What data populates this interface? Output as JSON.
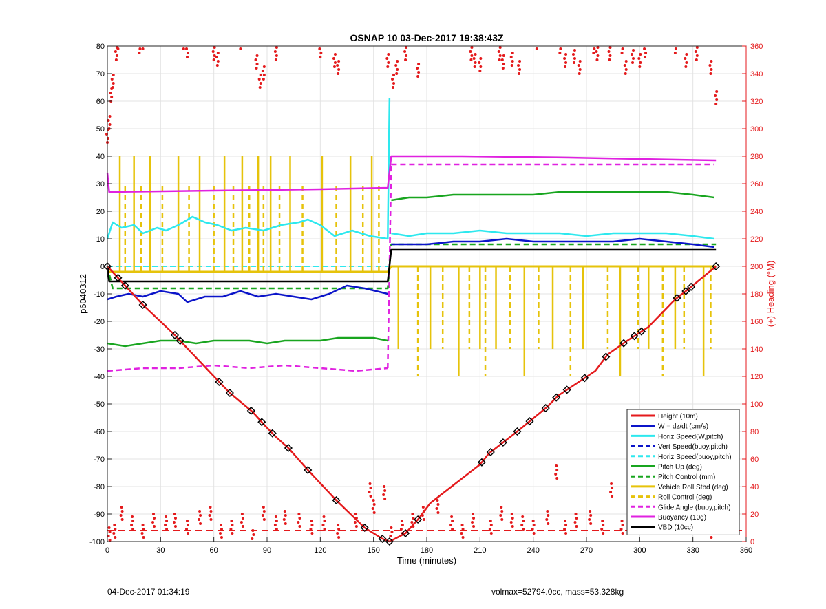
{
  "chart_data": {
    "type": "line",
    "title": "OSNAP 10 03-Dec-2017 19:38:43Z",
    "xlabel": "Time (minutes)",
    "ylabel_left": "p6040312",
    "ylabel_right": "(+) Heading (°M)",
    "xlim": [
      0,
      360
    ],
    "ylim_left": [
      -100,
      80
    ],
    "ylim_right": [
      0,
      360
    ],
    "xticks": [
      "0",
      "30",
      "60",
      "90",
      "120",
      "150",
      "180",
      "210",
      "240",
      "270",
      "300",
      "330",
      "360"
    ],
    "yticks_left": [
      "80",
      "70",
      "60",
      "50",
      "40",
      "30",
      "20",
      "10",
      "0",
      "-10",
      "-20",
      "-30",
      "-40",
      "-50",
      "-60",
      "-70",
      "-80",
      "-90",
      "-100"
    ],
    "yticks_right": [
      "360",
      "340",
      "320",
      "300",
      "280",
      "260",
      "240",
      "220",
      "200",
      "180",
      "160",
      "140",
      "120",
      "100",
      "80",
      "60",
      "40",
      "20",
      "0"
    ],
    "grid": true,
    "legend_position": "bottom-right",
    "colors": {
      "height": "#e41a1c",
      "w": "#0b14c9",
      "horiz": "#2ee8ee",
      "pitch": "#18a51f",
      "roll": "#e6c30b",
      "glide": "#e022e0",
      "buoy": "#e022e0",
      "vbd": "#000000",
      "heading": "#e41a1c",
      "axis_right": "#e41a1c"
    },
    "legend": [
      {
        "name": "Height (10m)",
        "color": "#e41a1c",
        "style": "solid"
      },
      {
        "name": "W = dz/dt (cm/s)",
        "color": "#0b14c9",
        "style": "solid"
      },
      {
        "name": "Horiz Speed(W,pitch)",
        "color": "#2ee8ee",
        "style": "solid"
      },
      {
        "name": "Vert Speed(buoy,pitch)",
        "color": "#0b14c9",
        "style": "dashed"
      },
      {
        "name": "Horiz Speed(buoy,pitch)",
        "color": "#2ee8ee",
        "style": "dashed"
      },
      {
        "name": "Pitch Up (deg)",
        "color": "#18a51f",
        "style": "solid"
      },
      {
        "name": "Pitch Control (mm)",
        "color": "#18a51f",
        "style": "dashed"
      },
      {
        "name": "Vehicle Roll Stbd (deg)",
        "color": "#e6c30b",
        "style": "solid"
      },
      {
        "name": "Roll Control (deg)",
        "color": "#e6c30b",
        "style": "dashed"
      },
      {
        "name": "Glide Angle (buoy,pitch)",
        "color": "#e022e0",
        "style": "dashed"
      },
      {
        "name": "Buoyancy (10g)",
        "color": "#e022e0",
        "style": "solid"
      },
      {
        "name": "VBD (10cc)",
        "color": "#000000",
        "style": "solid"
      }
    ],
    "series": {
      "height": {
        "x": [
          0,
          10,
          20,
          38,
          63,
          69,
          82,
          89,
          95,
          102,
          113,
          129,
          145,
          155,
          159,
          168,
          175,
          182,
          210,
          215,
          223,
          231,
          248,
          254,
          261,
          275,
          282,
          293,
          305,
          320,
          328,
          343
        ],
        "y": [
          0,
          -7,
          -14,
          -25,
          -42,
          -46,
          -53,
          -58,
          -62,
          -66,
          -74,
          -85,
          -95,
          -99,
          -100,
          -97,
          -92,
          -86,
          -72,
          -68,
          -64,
          -60,
          -51,
          -47,
          -44,
          -38,
          -32,
          -27,
          -22,
          -12,
          -8,
          0
        ]
      },
      "w_down": {
        "x": [
          0,
          5,
          12,
          20,
          30,
          40,
          45,
          55,
          65,
          75,
          85,
          95,
          105,
          115,
          125,
          135,
          145,
          158
        ],
        "y": [
          -12,
          -11,
          -10,
          -11,
          -9,
          -10,
          -13,
          -11,
          -11,
          -9,
          -11,
          -10,
          -11,
          -12,
          -10,
          -7,
          -8,
          -10
        ]
      },
      "w_up": {
        "x": [
          160,
          170,
          180,
          195,
          210,
          225,
          240,
          255,
          270,
          285,
          300,
          315,
          330,
          342
        ],
        "y": [
          8,
          8,
          8,
          9,
          9,
          10,
          9,
          9,
          9,
          9,
          10,
          9,
          8,
          7
        ]
      },
      "horiz_down": {
        "x": [
          0,
          3,
          8,
          15,
          20,
          28,
          33,
          40,
          48,
          55,
          62,
          70,
          78,
          88,
          98,
          108,
          113,
          120,
          128,
          138,
          148,
          158
        ],
        "y": [
          10,
          16,
          14,
          15,
          12,
          14,
          13,
          15,
          18,
          16,
          15,
          13,
          14,
          13,
          15,
          16,
          17,
          15,
          11,
          13,
          11,
          10
        ]
      },
      "horiz_up": {
        "x": [
          160,
          170,
          180,
          195,
          210,
          225,
          240,
          255,
          270,
          285,
          300,
          315,
          330,
          342
        ],
        "y": [
          12,
          11,
          12,
          12,
          13,
          12,
          12,
          12,
          11,
          12,
          12,
          12,
          11,
          10
        ]
      },
      "pitch_down": {
        "x": [
          0,
          10,
          20,
          30,
          40,
          50,
          60,
          70,
          80,
          90,
          100,
          110,
          120,
          130,
          140,
          150,
          158
        ],
        "y": [
          -28,
          -29,
          -28,
          -27,
          -27,
          -28,
          -27,
          -27,
          -27,
          -28,
          -27,
          -27,
          -27,
          -26,
          -26,
          -26,
          -27
        ]
      },
      "pitch_up": {
        "x": [
          160,
          170,
          180,
          195,
          210,
          225,
          240,
          255,
          270,
          285,
          300,
          315,
          330,
          342
        ],
        "y": [
          24,
          25,
          25,
          26,
          26,
          26,
          26,
          27,
          27,
          27,
          27,
          27,
          26,
          25
        ]
      },
      "pitch_control": {
        "x": [
          0,
          3,
          158,
          160,
          343
        ],
        "y": [
          0,
          -8,
          -8,
          8,
          8
        ]
      },
      "roll_base": {
        "x": [
          0,
          158,
          160,
          343
        ],
        "y": [
          -2,
          -2,
          0,
          0
        ]
      },
      "roll_spikes": [
        7,
        10,
        15,
        19,
        24,
        31,
        40,
        46,
        52,
        60,
        66,
        71,
        76,
        80,
        85,
        88,
        92,
        97,
        103,
        110,
        121,
        129,
        137,
        144,
        149,
        153,
        164,
        175,
        182,
        189,
        198,
        204,
        210,
        213,
        219,
        227,
        235,
        243,
        251,
        261,
        268,
        282,
        289,
        299,
        305,
        313,
        320,
        325,
        336,
        340
      ],
      "glide_down": {
        "x": [
          0,
          20,
          40,
          60,
          80,
          100,
          120,
          140,
          158
        ],
        "y": [
          -38,
          -37,
          -37,
          -36,
          -37,
          -36,
          -37,
          -38,
          -37
        ]
      },
      "glide_up": {
        "x": [
          160,
          190,
          220,
          250,
          280,
          310,
          342
        ],
        "y": [
          37,
          37,
          37,
          37,
          37,
          37,
          37
        ]
      },
      "buoyancy": {
        "x": [
          0,
          1,
          60,
          120,
          158,
          160,
          200,
          260,
          300,
          343
        ],
        "y": [
          34,
          27,
          27.5,
          28,
          28.5,
          40,
          40,
          39.5,
          39,
          38.5
        ]
      },
      "vbd": {
        "x": [
          0,
          1,
          158,
          160,
          343
        ],
        "y": [
          0,
          -5.5,
          -5.5,
          6,
          6
        ]
      },
      "heading_top": [
        [
          0,
          290
        ],
        [
          1,
          300
        ],
        [
          2,
          320
        ],
        [
          3,
          330
        ],
        [
          5,
          350
        ],
        [
          6,
          358
        ],
        [
          18,
          355
        ],
        [
          20,
          358
        ],
        [
          43,
          358
        ],
        [
          45,
          352
        ],
        [
          60,
          350
        ],
        [
          62,
          346
        ],
        [
          75,
          358
        ],
        [
          84,
          344
        ],
        [
          86,
          330
        ],
        [
          88,
          336
        ],
        [
          95,
          350
        ],
        [
          120,
          352
        ],
        [
          128,
          345
        ],
        [
          130,
          340
        ],
        [
          158,
          345
        ],
        [
          161,
          330
        ],
        [
          163,
          340
        ],
        [
          168,
          350
        ],
        [
          175,
          338
        ],
        [
          205,
          350
        ],
        [
          207,
          345
        ],
        [
          210,
          342
        ],
        [
          221,
          350
        ],
        [
          223,
          344
        ],
        [
          228,
          346
        ],
        [
          232,
          340
        ],
        [
          242,
          358
        ],
        [
          255,
          355
        ],
        [
          258,
          345
        ],
        [
          263,
          348
        ],
        [
          266,
          340
        ],
        [
          274,
          355
        ],
        [
          276,
          350
        ],
        [
          283,
          350
        ],
        [
          290,
          355
        ],
        [
          292,
          340
        ],
        [
          296,
          348
        ],
        [
          300,
          345
        ],
        [
          303,
          352
        ],
        [
          320,
          355
        ],
        [
          326,
          345
        ],
        [
          332,
          350
        ],
        [
          340,
          340
        ],
        [
          343,
          318
        ]
      ],
      "heading_bottom": [
        [
          1,
          10
        ],
        [
          4,
          12
        ],
        [
          8,
          25
        ],
        [
          14,
          18
        ],
        [
          20,
          12
        ],
        [
          26,
          20
        ],
        [
          33,
          18
        ],
        [
          38,
          20
        ],
        [
          45,
          15
        ],
        [
          52,
          22
        ],
        [
          58,
          25
        ],
        [
          64,
          12
        ],
        [
          70,
          15
        ],
        [
          76,
          20
        ],
        [
          82,
          8
        ],
        [
          88,
          25
        ],
        [
          95,
          18
        ],
        [
          100,
          22
        ],
        [
          108,
          20
        ],
        [
          115,
          15
        ],
        [
          122,
          18
        ],
        [
          130,
          12
        ],
        [
          140,
          20
        ],
        [
          148,
          42
        ],
        [
          150,
          30
        ],
        [
          156,
          40
        ],
        [
          160,
          10
        ],
        [
          166,
          15
        ],
        [
          172,
          20
        ],
        [
          178,
          25
        ],
        [
          186,
          30
        ],
        [
          194,
          18
        ],
        [
          200,
          12
        ],
        [
          206,
          20
        ],
        [
          216,
          15
        ],
        [
          222,
          25
        ],
        [
          228,
          20
        ],
        [
          234,
          18
        ],
        [
          240,
          15
        ],
        [
          248,
          22
        ],
        [
          253,
          55
        ],
        [
          258,
          15
        ],
        [
          264,
          20
        ],
        [
          272,
          22
        ],
        [
          279,
          15
        ],
        [
          284,
          42
        ],
        [
          290,
          15
        ],
        [
          296,
          18
        ],
        [
          306,
          20
        ],
        [
          314,
          25
        ],
        [
          322,
          20
        ],
        [
          328,
          15
        ],
        [
          334,
          20
        ],
        [
          340,
          12
        ]
      ],
      "heading_dashed": {
        "y": 8
      },
      "markers": [
        0,
        6,
        10,
        20,
        38,
        41,
        63,
        69,
        81,
        87,
        93,
        102,
        113,
        129,
        145,
        155,
        159,
        168,
        175,
        211,
        216,
        223,
        231,
        238,
        247,
        253,
        259,
        269,
        281,
        291,
        297,
        301,
        321,
        326,
        329,
        343
      ]
    }
  },
  "footer": {
    "timestamp": "04-Dec-2017 01:34:19",
    "stats": "volmax=52794.0cc, mass=53.328kg"
  }
}
